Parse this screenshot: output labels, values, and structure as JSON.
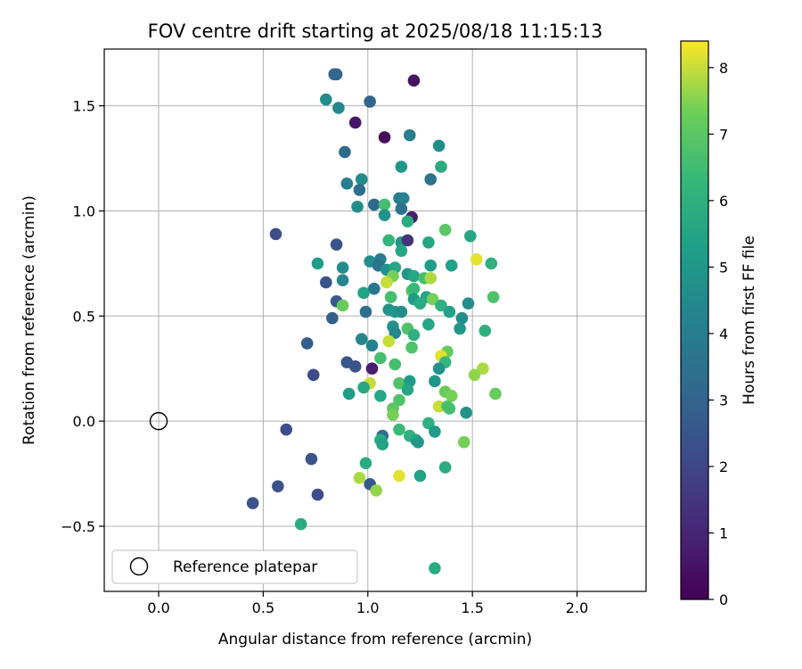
{
  "chart_data": {
    "type": "scatter",
    "title": "FOV centre drift starting at 2025/08/18 11:15:13",
    "xlabel": "Angular distance from reference (arcmin)",
    "ylabel": "Rotation from reference (arcmin)",
    "xlim": [
      -0.26,
      2.33
    ],
    "ylim": [
      -0.81,
      1.77
    ],
    "xticks": [
      0.0,
      0.5,
      1.0,
      1.5,
      2.0
    ],
    "xtick_labels": [
      "0.0",
      "0.5",
      "1.0",
      "1.5",
      "2.0"
    ],
    "yticks": [
      -0.5,
      0.0,
      0.5,
      1.0,
      1.5
    ],
    "ytick_labels": [
      "−0.5",
      "0.0",
      "0.5",
      "1.0",
      "1.5"
    ],
    "grid": true,
    "legend": {
      "placement": "lower-left",
      "label": "Reference platepar"
    },
    "reference_point": {
      "x": 0.0,
      "y": 0.0
    },
    "colorbar": {
      "label": "Hours from first FF file",
      "range": [
        0,
        8.4
      ],
      "ticks": [
        0,
        1,
        2,
        3,
        4,
        5,
        6,
        7,
        8
      ],
      "tick_labels": [
        "0",
        "1",
        "2",
        "3",
        "4",
        "5",
        "6",
        "7",
        "8"
      ],
      "colormap": "viridis"
    },
    "points": [
      {
        "x": 0.84,
        "y": 1.65,
        "h": 3.0
      },
      {
        "x": 0.85,
        "y": 1.65,
        "h": 3.1
      },
      {
        "x": 1.22,
        "y": 1.62,
        "h": 0.5
      },
      {
        "x": 0.8,
        "y": 1.53,
        "h": 4.6
      },
      {
        "x": 0.86,
        "y": 1.49,
        "h": 4.4
      },
      {
        "x": 1.01,
        "y": 1.52,
        "h": 3.0
      },
      {
        "x": 0.94,
        "y": 1.42,
        "h": 0.6
      },
      {
        "x": 1.08,
        "y": 1.35,
        "h": 0.3
      },
      {
        "x": 1.2,
        "y": 1.36,
        "h": 4.0
      },
      {
        "x": 1.34,
        "y": 1.31,
        "h": 4.6
      },
      {
        "x": 0.89,
        "y": 1.28,
        "h": 3.2
      },
      {
        "x": 1.16,
        "y": 1.21,
        "h": 5.0
      },
      {
        "x": 1.35,
        "y": 1.21,
        "h": 5.8
      },
      {
        "x": 0.9,
        "y": 1.13,
        "h": 4.0
      },
      {
        "x": 0.97,
        "y": 1.15,
        "h": 4.6
      },
      {
        "x": 0.96,
        "y": 1.1,
        "h": 3.4
      },
      {
        "x": 1.3,
        "y": 1.15,
        "h": 3.6
      },
      {
        "x": 1.15,
        "y": 1.06,
        "h": 4.0
      },
      {
        "x": 1.17,
        "y": 1.06,
        "h": 4.2
      },
      {
        "x": 1.03,
        "y": 1.03,
        "h": 3.2
      },
      {
        "x": 1.08,
        "y": 1.03,
        "h": 6.6
      },
      {
        "x": 0.95,
        "y": 1.02,
        "h": 4.6
      },
      {
        "x": 1.08,
        "y": 0.98,
        "h": 4.8
      },
      {
        "x": 1.16,
        "y": 1.01,
        "h": 3.6
      },
      {
        "x": 1.21,
        "y": 0.97,
        "h": 0.8
      },
      {
        "x": 1.19,
        "y": 0.95,
        "h": 5.8
      },
      {
        "x": 1.37,
        "y": 0.91,
        "h": 7.0
      },
      {
        "x": 0.56,
        "y": 0.89,
        "h": 2.2
      },
      {
        "x": 1.49,
        "y": 0.88,
        "h": 5.6
      },
      {
        "x": 1.1,
        "y": 0.86,
        "h": 6.2
      },
      {
        "x": 1.16,
        "y": 0.85,
        "h": 5.0
      },
      {
        "x": 1.19,
        "y": 0.86,
        "h": 1.4
      },
      {
        "x": 1.29,
        "y": 0.85,
        "h": 5.6
      },
      {
        "x": 0.85,
        "y": 0.84,
        "h": 2.4
      },
      {
        "x": 1.16,
        "y": 0.81,
        "h": 5.6
      },
      {
        "x": 1.52,
        "y": 0.77,
        "h": 8.2
      },
      {
        "x": 0.76,
        "y": 0.75,
        "h": 5.2
      },
      {
        "x": 1.01,
        "y": 0.76,
        "h": 4.6
      },
      {
        "x": 1.06,
        "y": 0.77,
        "h": 4.0
      },
      {
        "x": 1.05,
        "y": 0.74,
        "h": 3.6
      },
      {
        "x": 1.09,
        "y": 0.72,
        "h": 4.8
      },
      {
        "x": 1.13,
        "y": 0.73,
        "h": 5.6
      },
      {
        "x": 1.3,
        "y": 0.74,
        "h": 5.2
      },
      {
        "x": 1.4,
        "y": 0.74,
        "h": 5.4
      },
      {
        "x": 1.59,
        "y": 0.75,
        "h": 6.0
      },
      {
        "x": 0.88,
        "y": 0.73,
        "h": 4.6
      },
      {
        "x": 1.12,
        "y": 0.69,
        "h": 7.4
      },
      {
        "x": 1.19,
        "y": 0.7,
        "h": 5.0
      },
      {
        "x": 1.22,
        "y": 0.69,
        "h": 5.6
      },
      {
        "x": 1.27,
        "y": 0.68,
        "h": 6.6
      },
      {
        "x": 1.3,
        "y": 0.68,
        "h": 7.8
      },
      {
        "x": 0.88,
        "y": 0.67,
        "h": 4.4
      },
      {
        "x": 0.8,
        "y": 0.66,
        "h": 2.4
      },
      {
        "x": 1.09,
        "y": 0.66,
        "h": 8.0
      },
      {
        "x": 1.03,
        "y": 0.63,
        "h": 3.8
      },
      {
        "x": 0.98,
        "y": 0.61,
        "h": 5.4
      },
      {
        "x": 1.21,
        "y": 0.62,
        "h": 7.0
      },
      {
        "x": 1.22,
        "y": 0.63,
        "h": 6.4
      },
      {
        "x": 1.11,
        "y": 0.59,
        "h": 6.6
      },
      {
        "x": 1.22,
        "y": 0.58,
        "h": 5.2
      },
      {
        "x": 1.28,
        "y": 0.59,
        "h": 5.6
      },
      {
        "x": 1.31,
        "y": 0.58,
        "h": 7.4
      },
      {
        "x": 1.6,
        "y": 0.59,
        "h": 6.8
      },
      {
        "x": 0.85,
        "y": 0.57,
        "h": 2.6
      },
      {
        "x": 0.88,
        "y": 0.55,
        "h": 7.2
      },
      {
        "x": 1.25,
        "y": 0.56,
        "h": 5.8
      },
      {
        "x": 1.35,
        "y": 0.55,
        "h": 6.0
      },
      {
        "x": 1.48,
        "y": 0.56,
        "h": 4.6
      },
      {
        "x": 1.1,
        "y": 0.53,
        "h": 4.8
      },
      {
        "x": 0.99,
        "y": 0.52,
        "h": 3.4
      },
      {
        "x": 1.13,
        "y": 0.52,
        "h": 5.0
      },
      {
        "x": 1.16,
        "y": 0.52,
        "h": 4.6
      },
      {
        "x": 1.39,
        "y": 0.52,
        "h": 5.4
      },
      {
        "x": 0.83,
        "y": 0.49,
        "h": 2.8
      },
      {
        "x": 1.45,
        "y": 0.49,
        "h": 4.6
      },
      {
        "x": 1.12,
        "y": 0.45,
        "h": 4.8
      },
      {
        "x": 1.19,
        "y": 0.44,
        "h": 6.8
      },
      {
        "x": 1.29,
        "y": 0.46,
        "h": 5.6
      },
      {
        "x": 1.44,
        "y": 0.44,
        "h": 5.0
      },
      {
        "x": 1.56,
        "y": 0.43,
        "h": 6.0
      },
      {
        "x": 1.13,
        "y": 0.42,
        "h": 4.4
      },
      {
        "x": 1.22,
        "y": 0.41,
        "h": 6.0
      },
      {
        "x": 0.97,
        "y": 0.39,
        "h": 4.4
      },
      {
        "x": 1.1,
        "y": 0.38,
        "h": 8.0
      },
      {
        "x": 0.71,
        "y": 0.37,
        "h": 2.8
      },
      {
        "x": 1.02,
        "y": 0.36,
        "h": 4.2
      },
      {
        "x": 1.21,
        "y": 0.35,
        "h": 6.8
      },
      {
        "x": 1.38,
        "y": 0.33,
        "h": 7.2
      },
      {
        "x": 1.06,
        "y": 0.3,
        "h": 6.6
      },
      {
        "x": 1.35,
        "y": 0.31,
        "h": 8.2
      },
      {
        "x": 1.37,
        "y": 0.28,
        "h": 6.2
      },
      {
        "x": 0.9,
        "y": 0.28,
        "h": 2.6
      },
      {
        "x": 0.94,
        "y": 0.26,
        "h": 2.4
      },
      {
        "x": 1.13,
        "y": 0.27,
        "h": 6.6
      },
      {
        "x": 1.34,
        "y": 0.25,
        "h": 4.8
      },
      {
        "x": 1.02,
        "y": 0.25,
        "h": 0.8
      },
      {
        "x": 1.55,
        "y": 0.25,
        "h": 7.8
      },
      {
        "x": 1.51,
        "y": 0.22,
        "h": 7.6
      },
      {
        "x": 0.74,
        "y": 0.22,
        "h": 2.2
      },
      {
        "x": 1.01,
        "y": 0.18,
        "h": 8.0
      },
      {
        "x": 1.15,
        "y": 0.18,
        "h": 6.8
      },
      {
        "x": 1.2,
        "y": 0.19,
        "h": 5.2
      },
      {
        "x": 1.32,
        "y": 0.19,
        "h": 5.0
      },
      {
        "x": 0.98,
        "y": 0.16,
        "h": 5.6
      },
      {
        "x": 1.19,
        "y": 0.15,
        "h": 5.6
      },
      {
        "x": 0.91,
        "y": 0.13,
        "h": 5.2
      },
      {
        "x": 1.06,
        "y": 0.12,
        "h": 5.6
      },
      {
        "x": 1.37,
        "y": 0.14,
        "h": 7.2
      },
      {
        "x": 1.4,
        "y": 0.12,
        "h": 7.4
      },
      {
        "x": 1.61,
        "y": 0.13,
        "h": 7.2
      },
      {
        "x": 1.15,
        "y": 0.1,
        "h": 6.8
      },
      {
        "x": 1.34,
        "y": 0.07,
        "h": 8.0
      },
      {
        "x": 1.38,
        "y": 0.07,
        "h": 6.8
      },
      {
        "x": 1.39,
        "y": 0.06,
        "h": 6.6
      },
      {
        "x": 1.12,
        "y": 0.06,
        "h": 7.0
      },
      {
        "x": 1.47,
        "y": 0.04,
        "h": 4.8
      },
      {
        "x": 1.12,
        "y": 0.03,
        "h": 7.4
      },
      {
        "x": 1.29,
        "y": -0.01,
        "h": 6.0
      },
      {
        "x": 1.15,
        "y": -0.04,
        "h": 6.4
      },
      {
        "x": 1.32,
        "y": -0.05,
        "h": 5.2
      },
      {
        "x": 1.07,
        "y": -0.07,
        "h": 3.4
      },
      {
        "x": 1.2,
        "y": -0.07,
        "h": 6.0
      },
      {
        "x": 1.06,
        "y": -0.09,
        "h": 5.8
      },
      {
        "x": 1.23,
        "y": -0.09,
        "h": 5.6
      },
      {
        "x": 1.07,
        "y": -0.11,
        "h": 5.4
      },
      {
        "x": 1.24,
        "y": -0.1,
        "h": 5.0
      },
      {
        "x": 1.46,
        "y": -0.1,
        "h": 7.4
      },
      {
        "x": 0.61,
        "y": -0.04,
        "h": 2.2
      },
      {
        "x": 0.73,
        "y": -0.18,
        "h": 2.4
      },
      {
        "x": 0.99,
        "y": -0.2,
        "h": 5.8
      },
      {
        "x": 1.37,
        "y": -0.22,
        "h": 5.8
      },
      {
        "x": 1.15,
        "y": -0.26,
        "h": 8.2
      },
      {
        "x": 0.96,
        "y": -0.27,
        "h": 7.8
      },
      {
        "x": 1.25,
        "y": -0.26,
        "h": 5.4
      },
      {
        "x": 1.01,
        "y": -0.3,
        "h": 2.6
      },
      {
        "x": 1.04,
        "y": -0.33,
        "h": 7.6
      },
      {
        "x": 0.57,
        "y": -0.31,
        "h": 2.4
      },
      {
        "x": 0.76,
        "y": -0.35,
        "h": 2.2
      },
      {
        "x": 0.45,
        "y": -0.39,
        "h": 2.4
      },
      {
        "x": 0.68,
        "y": -0.49,
        "h": 5.8
      },
      {
        "x": 1.32,
        "y": -0.7,
        "h": 5.8
      }
    ]
  }
}
